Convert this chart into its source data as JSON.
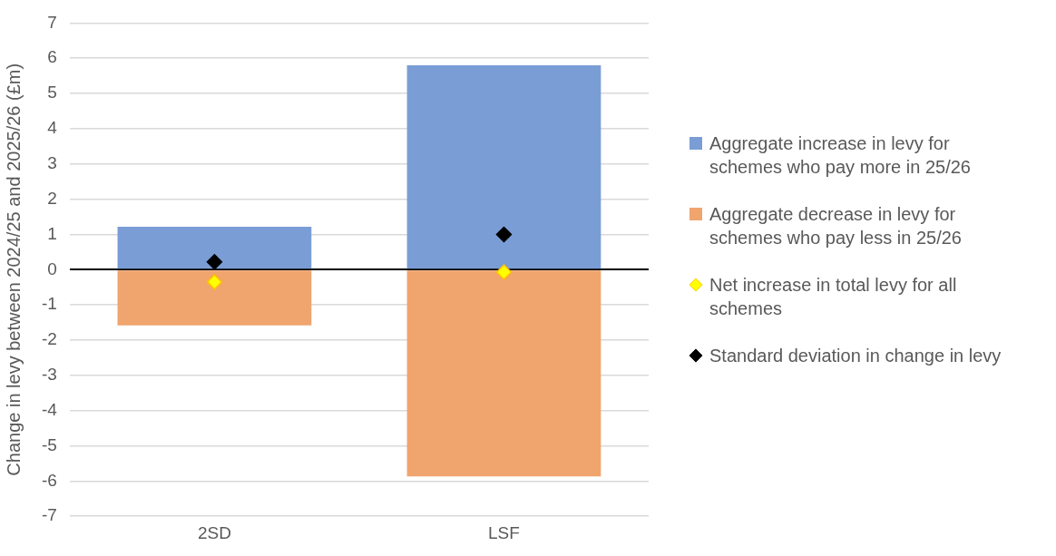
{
  "chart_data": {
    "type": "bar",
    "stacked": true,
    "ylabel": "Change in levy between 2024/25 and 2025/26 (£m)",
    "categories": [
      "2SD",
      "LSF"
    ],
    "series": [
      {
        "name": "Aggregate increase in levy for schemes who pay more in 25/26",
        "color": "#7a9dd6",
        "values": [
          1.22,
          5.8
        ]
      },
      {
        "name": "Aggregate decrease in levy for schemes who pay less in 25/26",
        "color": "#f0a46e",
        "values": [
          -1.58,
          -5.87
        ]
      },
      {
        "name": "Net increase in total levy for all schemes",
        "type": "scatter",
        "marker": "diamond",
        "color": "#ffff00",
        "x": [
          "2SD",
          "LSF"
        ],
        "values": [
          -0.35,
          -0.07
        ]
      },
      {
        "name": "Standard deviation in change in levy",
        "type": "scatter",
        "marker": "diamond",
        "color": "#000000",
        "x": [
          "2SD",
          "LSF"
        ],
        "values": [
          0.22,
          1.0
        ]
      }
    ],
    "ylim": [
      -7,
      7
    ],
    "yticks": [
      -7,
      -6,
      -5,
      -4,
      -3,
      -2,
      -1,
      0,
      1,
      2,
      3,
      4,
      5,
      6,
      7
    ],
    "grid": "y",
    "legend": "right"
  }
}
